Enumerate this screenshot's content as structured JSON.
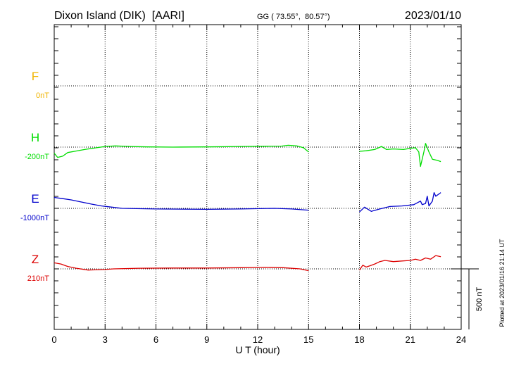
{
  "header": {
    "title": "Dixon Island (DIK)  [AARI]",
    "coords": "GG ( 73.55°,  80.57°)",
    "date": "2023/01/10"
  },
  "side_note": "Plotted at 2023/01/16 21:14 UT",
  "scale_label": "500 nT",
  "colors": {
    "F": "#f0b400",
    "H": "#00dd00",
    "E": "#0000cc",
    "Z": "#dd0000",
    "axis": "#000000"
  },
  "chart_data": {
    "type": "line",
    "xlabel": "U T (hour)",
    "xlim": [
      0,
      24
    ],
    "x_ticks": [
      "0",
      "3",
      "6",
      "9",
      "12",
      "15",
      "18",
      "21",
      "24"
    ],
    "scale_bar_nT": 500,
    "components": [
      {
        "name": "F",
        "baseline": "0nT"
      },
      {
        "name": "H",
        "baseline": "-200nT"
      },
      {
        "name": "E",
        "baseline": "-1000nT"
      },
      {
        "name": "Z",
        "baseline": "210nT"
      }
    ],
    "series": [
      {
        "name": "H",
        "baseline_value": -200,
        "segments": [
          [
            [
              0,
              -50
            ],
            [
              0.2,
              -85
            ],
            [
              0.5,
              -75
            ],
            [
              0.8,
              -45
            ],
            [
              1.2,
              -35
            ],
            [
              1.8,
              -20
            ],
            [
              2.5,
              -5
            ],
            [
              3.0,
              5
            ],
            [
              3.6,
              10
            ],
            [
              4.5,
              5
            ],
            [
              5.5,
              2
            ],
            [
              7,
              0
            ],
            [
              9,
              2
            ],
            [
              11,
              5
            ],
            [
              12.5,
              7
            ],
            [
              13.4,
              8
            ],
            [
              13.8,
              15
            ],
            [
              14.3,
              10
            ],
            [
              14.7,
              -5
            ],
            [
              15.0,
              -40
            ]
          ],
          [
            [
              18.0,
              -35
            ],
            [
              18.4,
              -30
            ],
            [
              18.9,
              -20
            ],
            [
              19.3,
              5
            ],
            [
              19.6,
              -20
            ],
            [
              20.0,
              -15
            ],
            [
              20.6,
              -20
            ],
            [
              21.0,
              -10
            ],
            [
              21.3,
              -5
            ],
            [
              21.5,
              -40
            ],
            [
              21.6,
              -160
            ],
            [
              21.8,
              -40
            ],
            [
              21.9,
              30
            ],
            [
              22.1,
              -40
            ],
            [
              22.3,
              -100
            ],
            [
              22.6,
              -110
            ],
            [
              22.8,
              -120
            ]
          ]
        ]
      },
      {
        "name": "E",
        "baseline_value": -1000,
        "segments": [
          [
            [
              0,
              90
            ],
            [
              0.5,
              80
            ],
            [
              1.0,
              70
            ],
            [
              1.5,
              55
            ],
            [
              2.2,
              35
            ],
            [
              2.8,
              20
            ],
            [
              3.4,
              10
            ],
            [
              4,
              0
            ],
            [
              6,
              -5
            ],
            [
              9,
              -8
            ],
            [
              11,
              -5
            ],
            [
              13,
              0
            ],
            [
              14,
              -5
            ],
            [
              15.0,
              -15
            ]
          ],
          [
            [
              18.0,
              -30
            ],
            [
              18.3,
              10
            ],
            [
              18.7,
              -25
            ],
            [
              19.2,
              -5
            ],
            [
              19.8,
              15
            ],
            [
              20.5,
              20
            ],
            [
              21.2,
              30
            ],
            [
              21.6,
              60
            ],
            [
              21.7,
              30
            ],
            [
              21.9,
              40
            ],
            [
              22.0,
              100
            ],
            [
              22.1,
              20
            ],
            [
              22.3,
              60
            ],
            [
              22.4,
              130
            ],
            [
              22.5,
              100
            ],
            [
              22.7,
              120
            ],
            [
              22.8,
              130
            ]
          ]
        ]
      },
      {
        "name": "Z",
        "baseline_value": 210,
        "segments": [
          [
            [
              0,
              50
            ],
            [
              0.4,
              40
            ],
            [
              0.8,
              20
            ],
            [
              1.3,
              5
            ],
            [
              2,
              -10
            ],
            [
              3,
              -5
            ],
            [
              3.5,
              0
            ],
            [
              5,
              5
            ],
            [
              7,
              7
            ],
            [
              9,
              7
            ],
            [
              11,
              10
            ],
            [
              12.5,
              12
            ],
            [
              13.5,
              10
            ],
            [
              14.5,
              0
            ],
            [
              15.0,
              -15
            ]
          ],
          [
            [
              18.0,
              -10
            ],
            [
              18.2,
              30
            ],
            [
              18.4,
              15
            ],
            [
              18.6,
              25
            ],
            [
              18.9,
              40
            ],
            [
              19.2,
              60
            ],
            [
              19.5,
              70
            ],
            [
              20,
              60
            ],
            [
              20.5,
              65
            ],
            [
              21,
              70
            ],
            [
              21.3,
              80
            ],
            [
              21.6,
              70
            ],
            [
              21.9,
              90
            ],
            [
              22.2,
              80
            ],
            [
              22.5,
              110
            ],
            [
              22.8,
              100
            ]
          ]
        ]
      }
    ]
  }
}
